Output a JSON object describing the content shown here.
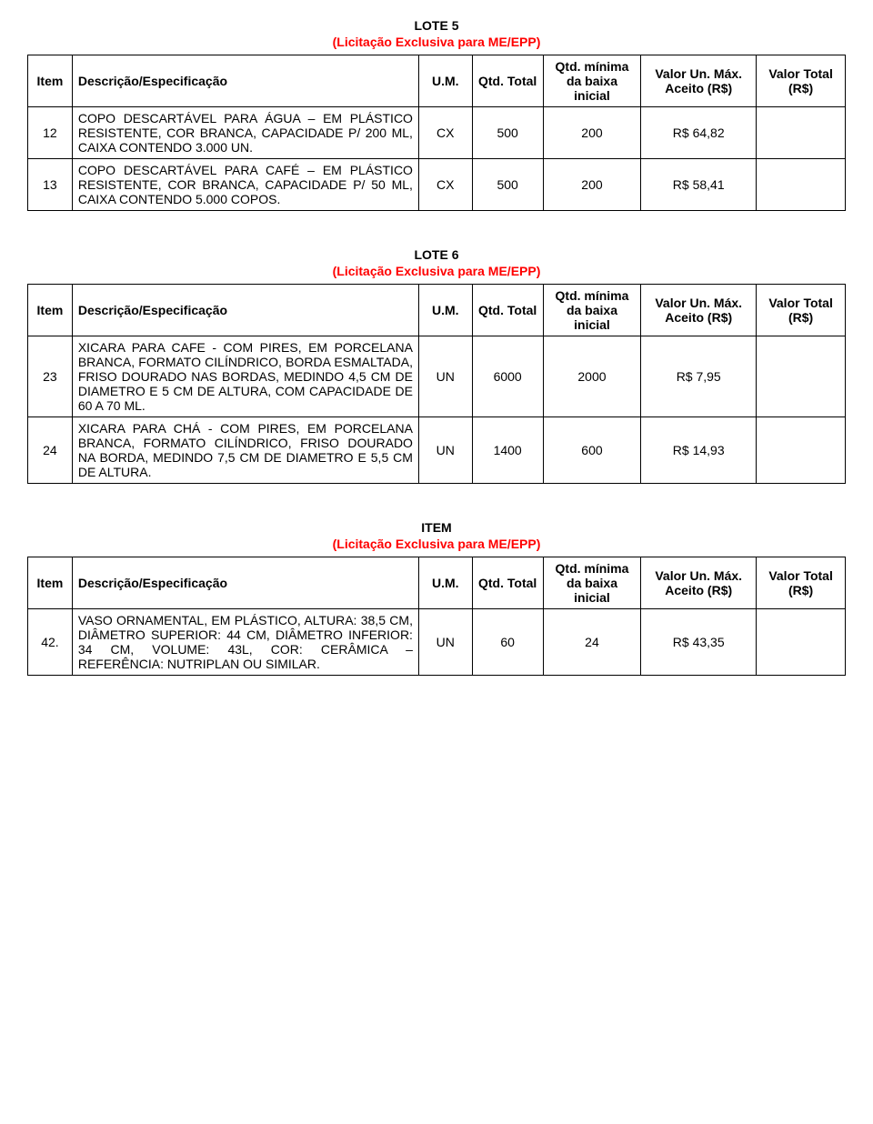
{
  "colors": {
    "text": "#000000",
    "subtitle": "#ff0000",
    "border": "#000000",
    "background": "#ffffff"
  },
  "typography": {
    "font_family": "Arial, sans-serif",
    "base_size_pt": 11,
    "title_weight": "bold"
  },
  "headers": {
    "item": "Item",
    "desc": "Descrição/Especificação",
    "um": "U.M.",
    "qtd_total": "Qtd. Total",
    "qtd_min": "Qtd. mínima da baixa inicial",
    "valor_un": "Valor Un. Máx. Aceito (R$)",
    "valor_total": "Valor Total (R$)"
  },
  "lote5": {
    "title": "LOTE 5",
    "subtitle": "(Licitação Exclusiva para ME/EPP)",
    "rows": [
      {
        "item": "12",
        "desc": "COPO DESCARTÁVEL PARA ÁGUA – EM PLÁSTICO RESISTENTE, COR BRANCA, CAPACIDADE P/ 200 ML, CAIXA CONTENDO 3.000 UN.",
        "um": "CX",
        "qt": "500",
        "qm": "200",
        "vu": "R$ 64,82",
        "vt": ""
      },
      {
        "item": "13",
        "desc": "COPO DESCARTÁVEL PARA CAFÉ – EM PLÁSTICO RESISTENTE, COR BRANCA, CAPACIDADE P/ 50 ML, CAIXA CONTENDO 5.000 COPOS.",
        "um": "CX",
        "qt": "500",
        "qm": "200",
        "vu": "R$ 58,41",
        "vt": ""
      }
    ]
  },
  "lote6": {
    "title": "LOTE 6",
    "subtitle": "(Licitação Exclusiva para ME/EPP)",
    "rows": [
      {
        "item": "23",
        "desc": "XICARA PARA CAFE - COM PIRES, EM PORCELANA BRANCA, FORMATO CILÍNDRICO, BORDA ESMALTADA, FRISO DOURADO NAS BORDAS, MEDINDO 4,5 CM DE DIAMETRO E 5 CM DE ALTURA, COM CAPACIDADE DE 60 A 70 ML.",
        "um": "UN",
        "qt": "6000",
        "qm": "2000",
        "vu": "R$ 7,95",
        "vt": ""
      },
      {
        "item": "24",
        "desc": "XICARA PARA CHÁ - COM PIRES, EM PORCELANA BRANCA, FORMATO CILÍNDRICO, FRISO DOURADO NA BORDA, MEDINDO 7,5 CM DE DIAMETRO E 5,5 CM DE ALTURA.",
        "um": "UN",
        "qt": "1400",
        "qm": "600",
        "vu": "R$ 14,93",
        "vt": ""
      }
    ]
  },
  "item_section": {
    "title": "ITEM",
    "subtitle": "(Licitação Exclusiva para ME/EPP)",
    "rows": [
      {
        "item": "42.",
        "desc": "VASO ORNAMENTAL, EM PLÁSTICO, ALTURA: 38,5 CM, DIÂMETRO SUPERIOR: 44 CM, DIÂMETRO INFERIOR: 34 CM, VOLUME: 43L, COR: CERÂMICA – REFERÊNCIA: NUTRIPLAN OU SIMILAR.",
        "um": "UN",
        "qt": "60",
        "qm": "24",
        "vu": "R$ 43,35",
        "vt": ""
      }
    ]
  }
}
